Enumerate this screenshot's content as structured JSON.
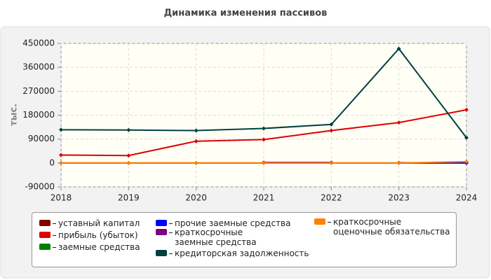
{
  "chart_data": {
    "type": "line",
    "title": "Динамика изменения пассивов",
    "y_label": "тыс.",
    "x": [
      2018,
      2019,
      2020,
      2021,
      2022,
      2023,
      2024
    ],
    "xlim": [
      2018,
      2024
    ],
    "xticks": [
      2018,
      2019,
      2020,
      2021,
      2022,
      2023,
      2024
    ],
    "ylim": [
      -90000,
      450000
    ],
    "yticks": [
      -90000,
      0,
      90000,
      180000,
      270000,
      360000,
      450000
    ],
    "grid": true,
    "series": [
      {
        "name": "уставный капитал",
        "color": "#800000",
        "values": [
          10,
          10,
          10,
          10,
          10,
          10,
          10
        ]
      },
      {
        "name": "прибыль (убыток)",
        "color": "#e00000",
        "values": [
          30000,
          28000,
          82000,
          88000,
          122000,
          152000,
          200000
        ]
      },
      {
        "name": "заемные средства",
        "color": "#008000",
        "values": [
          null,
          null,
          null,
          null,
          null,
          null,
          null
        ]
      },
      {
        "name": "прочие заемные средства",
        "color": "#0000ff",
        "values": [
          null,
          null,
          null,
          null,
          null,
          1000,
          1000
        ]
      },
      {
        "name": "краткосрочные заемные средства",
        "color": "#800080",
        "values": [
          null,
          null,
          null,
          2000,
          2000,
          null,
          null
        ]
      },
      {
        "name": "кредиторская задолженность",
        "color": "#004040",
        "values": [
          125000,
          124000,
          122000,
          130000,
          145000,
          430000,
          95000
        ]
      },
      {
        "name": "краткосрочные оценочные обязательства",
        "color": "#ff8000",
        "values": [
          0,
          0,
          0,
          0,
          0,
          0,
          5000
        ]
      }
    ]
  }
}
